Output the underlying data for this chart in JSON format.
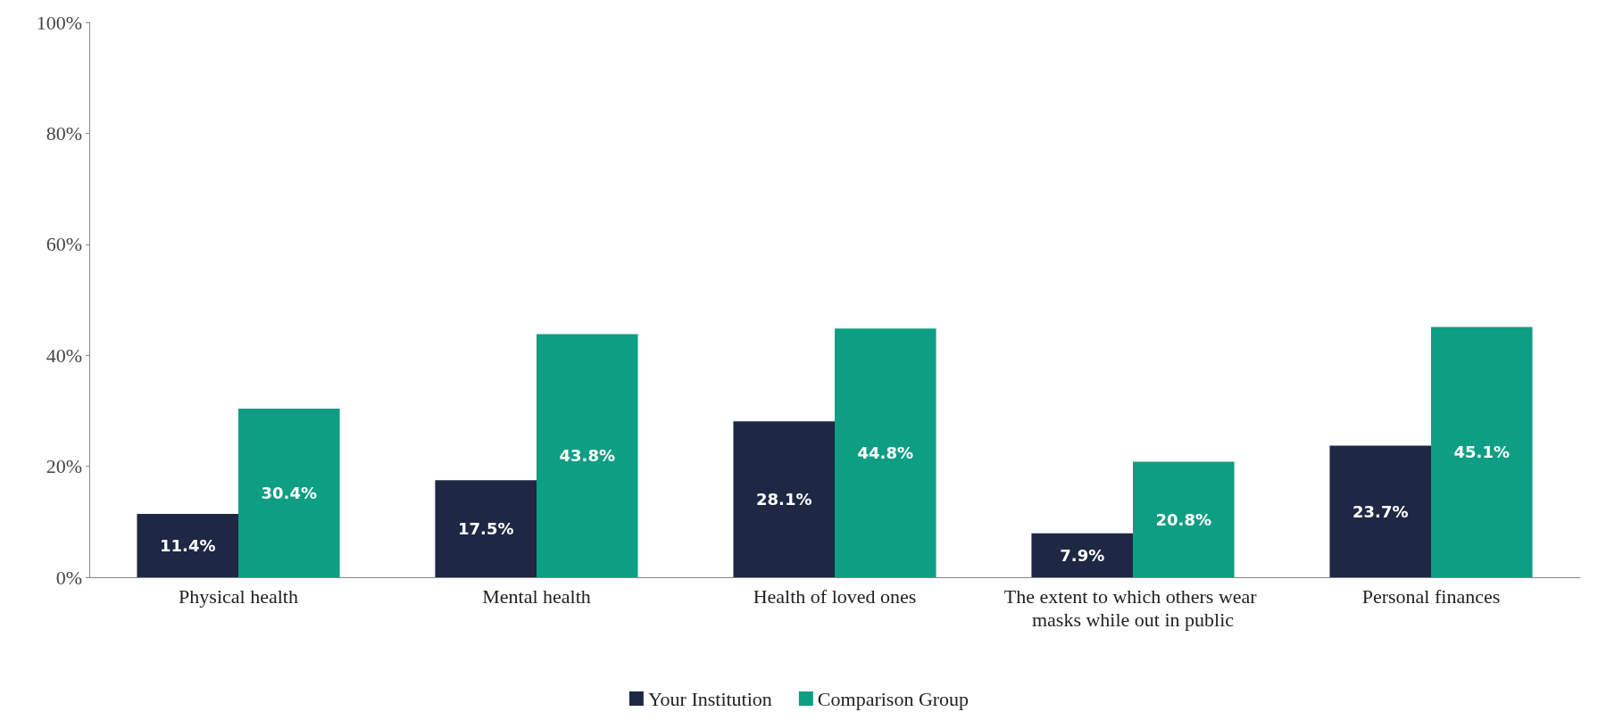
{
  "chart_data": {
    "type": "bar",
    "categories": [
      "Physical health",
      "Mental health",
      "Health of loved ones",
      "The extent to which others wear masks while out in public",
      "Personal finances"
    ],
    "series": [
      {
        "name": "Your Institution",
        "color": "#1e2743",
        "values": [
          11.4,
          17.5,
          28.1,
          7.9,
          23.7
        ],
        "value_labels": [
          "11.4%",
          "17.5%",
          "28.1%",
          "7.9%",
          "23.7%"
        ]
      },
      {
        "name": "Comparison Group",
        "color": "#0e9e83",
        "values": [
          30.4,
          43.8,
          44.8,
          20.8,
          45.1
        ],
        "value_labels": [
          "30.4%",
          "43.8%",
          "44.8%",
          "20.8%",
          "45.1%"
        ]
      }
    ],
    "ylim": [
      0,
      100
    ],
    "yticks": [
      {
        "value": 0,
        "label": "0%"
      },
      {
        "value": 20,
        "label": "20%"
      },
      {
        "value": 40,
        "label": "40%"
      },
      {
        "value": 60,
        "label": "60%"
      },
      {
        "value": 80,
        "label": "80%"
      },
      {
        "value": 100,
        "label": "100%"
      }
    ],
    "grid": false,
    "legend": "bottom"
  }
}
